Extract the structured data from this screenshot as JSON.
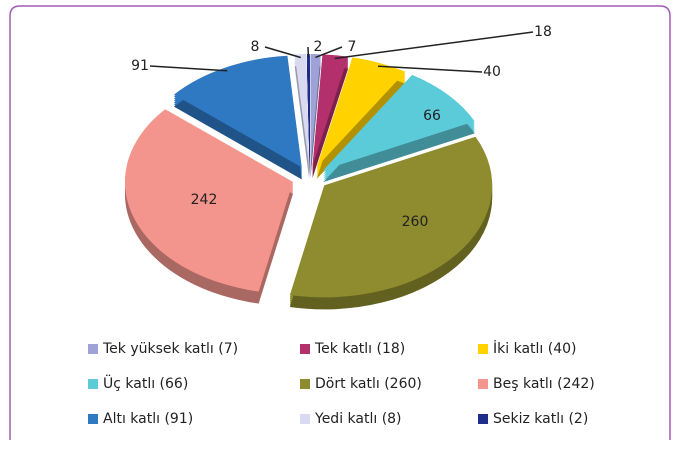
{
  "chart_data": {
    "type": "pie",
    "categories": [
      "Tek yüksek katlı (7)",
      "Tek katlı (18)",
      "İki katlı (40)",
      "Üç katlı (66)",
      "Dört katlı (260)",
      "Beş katlı (242)",
      "Altı katlı (91)",
      "Yedi katlı (8)",
      "Sekiz katlı (2)"
    ],
    "values": [
      7,
      18,
      40,
      66,
      260,
      242,
      91,
      8,
      2
    ],
    "colors": [
      "#9ea2d6",
      "#b3306c",
      "#ffd200",
      "#5ccbd9",
      "#8e8c2e",
      "#f4958d",
      "#2f78c2",
      "#d9daf1",
      "#1f2e8a"
    ],
    "legend": "bottom"
  }
}
